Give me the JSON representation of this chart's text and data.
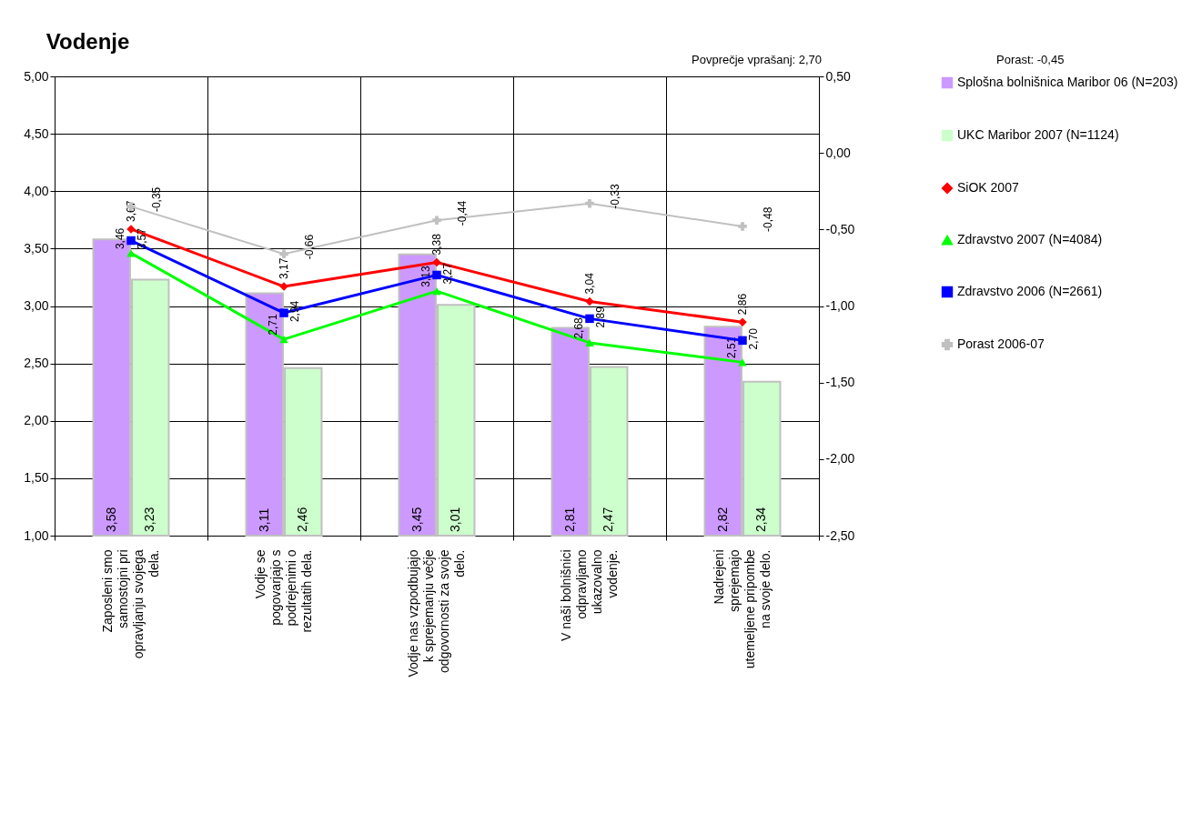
{
  "chart_data": {
    "type": "bar",
    "title": "Vodenje",
    "annotations": [
      "Povprečje vprašanj: 2,70",
      "Porast: -0,45"
    ],
    "categories": [
      "Zaposleni smo samostojni pri opravljanju svojega dela.",
      "Vodje se pogovarjajo s podrejenimi o rezultatih dela.",
      "Vodje nas  vzpodbujajo k sprejemanju večje odgovornosti za svoje delo.",
      "V naši bolnišnici odpravljamo ukazovalno vodenje.",
      "Nadrejeni sprejemajo utemeljene pripombe na svoje delo."
    ],
    "series": [
      {
        "name": "Splošna bolnišnica Maribor 06 (N=203)",
        "color": "#cc99ff",
        "values": [
          3.58,
          3.11,
          3.45,
          2.81,
          2.82
        ],
        "value_labels": [
          "3,58",
          "3,11",
          "3,45",
          "2,81",
          "2,82"
        ]
      },
      {
        "name": "UKC Maribor 2007 (N=1124)",
        "color": "#ccffcc",
        "values": [
          3.23,
          2.46,
          3.01,
          2.47,
          2.34
        ],
        "value_labels": [
          "3,23",
          "2,46",
          "3,01",
          "2,47",
          "2,34"
        ]
      },
      {
        "name": "SiOK 2007",
        "type": "line",
        "color": "#ff0000",
        "marker": "diamond",
        "values": [
          3.67,
          3.17,
          3.38,
          3.04,
          2.86
        ],
        "value_labels": [
          "3,67",
          "3,17",
          "3,38",
          "3,04",
          "2,86"
        ]
      },
      {
        "name": "Zdravstvo 2007 (N=4084)",
        "type": "line",
        "color": "#00ff00",
        "marker": "triangle",
        "values": [
          3.46,
          2.71,
          3.13,
          2.68,
          2.51
        ],
        "value_labels": [
          "3,46",
          "2,71",
          "3,13",
          "2,68",
          "2,51"
        ]
      },
      {
        "name": "Zdravstvo 2006 (N=2661)",
        "type": "line",
        "color": "#0000ff",
        "marker": "square",
        "values": [
          3.57,
          2.94,
          3.27,
          2.89,
          2.7
        ],
        "value_labels": [
          "3,57",
          "2,94",
          "3,27",
          "2,89",
          "2,70"
        ]
      },
      {
        "name": "Porast 2006-07",
        "type": "line",
        "color": "#c0c0c0",
        "marker": "cross",
        "axis": "y2",
        "values": [
          -0.35,
          -0.66,
          -0.44,
          -0.33,
          -0.48
        ],
        "value_labels": [
          "-0,35",
          "-0,66",
          "-0,44",
          "-0,33",
          "-0,48"
        ]
      }
    ],
    "ylim": [
      1,
      5
    ],
    "yticks": [
      {
        "value": 1,
        "label": "1,00"
      },
      {
        "value": 1.5,
        "label": "1,50"
      },
      {
        "value": 2,
        "label": "2,00"
      },
      {
        "value": 2.5,
        "label": "2,50"
      },
      {
        "value": 3,
        "label": "3,00"
      },
      {
        "value": 3.5,
        "label": "3,50"
      },
      {
        "value": 4,
        "label": "4,00"
      },
      {
        "value": 4.5,
        "label": "4,50"
      },
      {
        "value": 5,
        "label": "5,00"
      }
    ],
    "y2lim": [
      -2.5,
      0.5
    ],
    "y2ticks": [
      {
        "value": -2.5,
        "label": "-2,50"
      },
      {
        "value": -2,
        "label": "-2,00"
      },
      {
        "value": -1.5,
        "label": "-1,50"
      },
      {
        "value": -1,
        "label": "-1,00"
      },
      {
        "value": -0.5,
        "label": "-0,50"
      },
      {
        "value": 0,
        "label": "0,00"
      },
      {
        "value": 0.5,
        "label": "0,50"
      }
    ],
    "grid": true,
    "legend": "right"
  }
}
